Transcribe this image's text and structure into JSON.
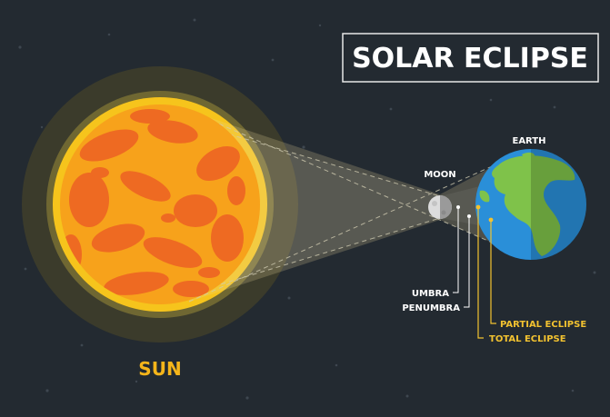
{
  "title": "SOLAR ECLIPSE",
  "bodies": {
    "sun": "SUN",
    "moon": "MOON",
    "earth": "EARTH"
  },
  "regions": {
    "umbra": "UMBRA",
    "penumbra": "PENUMBRA",
    "partial_eclipse": "PARTIAL ECLIPSE",
    "total_eclipse": "TOTAL ECLIPSE"
  },
  "colors": {
    "background": "#232a31",
    "sun_core": "#f7a21b",
    "sun_spots": "#ee6a22",
    "sun_label": "#f5b51a",
    "accent_yellow": "#f2c230",
    "earth_ocean": "#2a8fd8",
    "earth_land": "#7fc24a",
    "label_white": "#ffffff"
  }
}
